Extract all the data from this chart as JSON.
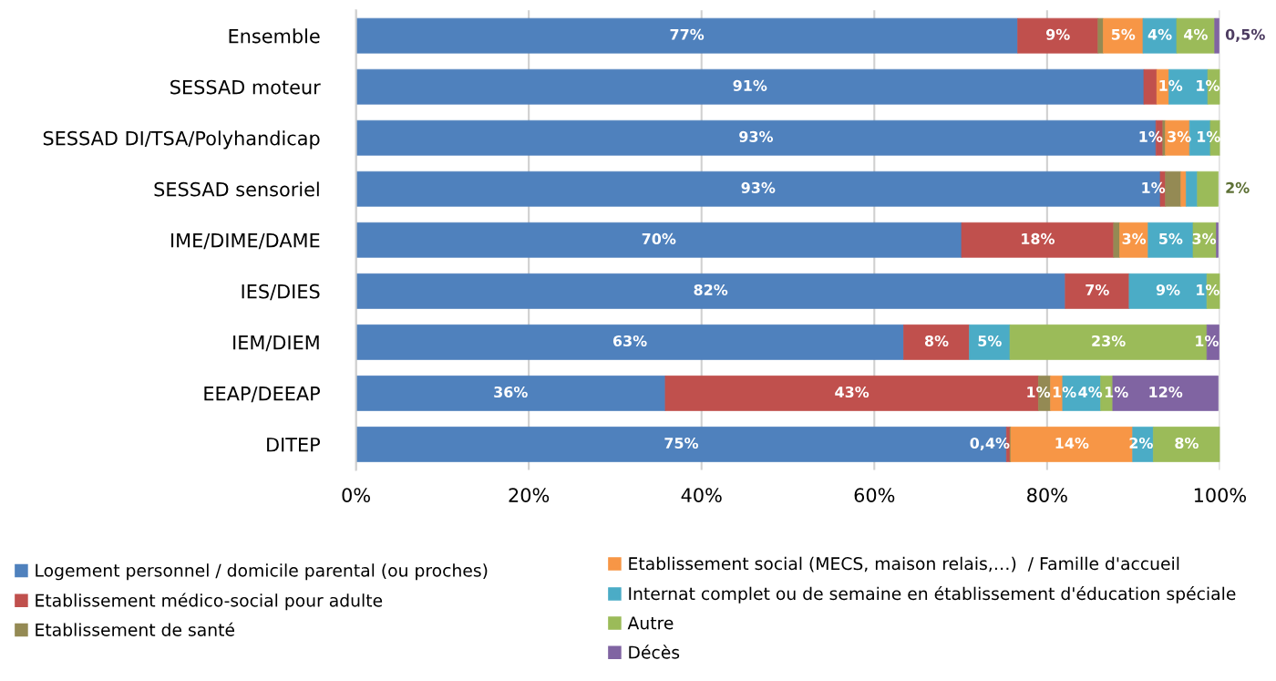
{
  "chart_data": {
    "type": "bar",
    "orientation": "horizontal",
    "stacked": true,
    "categories": [
      "Ensemble",
      "SESSAD moteur",
      "SESSAD DI/TSA/Polyhandicap",
      "SESSAD sensoriel",
      "IME/DIME/DAME",
      "IES/DIES",
      "IEM/DIEM",
      "EEAP/DEEAP",
      "DITEP"
    ],
    "series": [
      {
        "name": "Logement personnel / domicile parental (ou proches)",
        "color": "#4f81bd",
        "values": [
          76.6,
          91.2,
          92.6,
          93.1,
          70.1,
          82.1,
          63.4,
          35.8,
          75.3
        ],
        "value_labels": [
          "77%",
          "91%",
          "93%",
          "93%",
          "70%",
          "82%",
          "63%",
          "36%",
          "75%"
        ]
      },
      {
        "name": "Etablissement médico-social pour adulte",
        "color": "#c0504d",
        "values": [
          9.3,
          1.5,
          0.8,
          0.6,
          17.6,
          7.4,
          7.6,
          43.2,
          0.4
        ],
        "value_labels": [
          "9%",
          null,
          "1%",
          "1%",
          "18%",
          "7%",
          "8%",
          "43%",
          "0,4%"
        ]
      },
      {
        "name": "Etablissement de santé",
        "color": "#948a54",
        "values": [
          0.6,
          null,
          0.3,
          1.8,
          0.7,
          null,
          null,
          1.4,
          0.1
        ],
        "value_labels": [
          null,
          null,
          null,
          null,
          null,
          null,
          null,
          "1%",
          null
        ]
      },
      {
        "name": "Etablissement social (MECS, maison relais,…)  / Famille d'accueil",
        "color": "#f79646",
        "values": [
          4.6,
          1.4,
          2.8,
          0.6,
          3.3,
          null,
          null,
          1.4,
          14.1
        ],
        "value_labels": [
          "5%",
          "1%",
          "3%",
          null,
          "3%",
          null,
          null,
          "1%",
          "14%"
        ]
      },
      {
        "name": "Internat complet ou de semaine en établissement d'éducation spéciale",
        "color": "#4bacc6",
        "values": [
          3.9,
          4.5,
          2.4,
          1.3,
          5.2,
          9.0,
          4.7,
          4.4,
          2.4
        ],
        "value_labels": [
          "4%",
          null,
          null,
          null,
          "5%",
          "9%",
          "5%",
          "4%",
          "2%"
        ]
      },
      {
        "name": "Autre",
        "color": "#9bbb59",
        "values": [
          4.4,
          1.4,
          1.2,
          2.4,
          2.7,
          1.5,
          22.8,
          1.4,
          7.7
        ],
        "value_labels": [
          "4%",
          "1%",
          "1%",
          "2%",
          "3%",
          "1%",
          "23%",
          "1%",
          "8%"
        ]
      },
      {
        "name": "Décès",
        "color": "#8064a2",
        "values": [
          0.5,
          null,
          null,
          null,
          0.2,
          null,
          1.4,
          12.2,
          null
        ],
        "value_labels": [
          "0,5%",
          null,
          null,
          null,
          null,
          null,
          "1%",
          "12%",
          null
        ]
      }
    ],
    "xlim": [
      0,
      100
    ],
    "xticks": [
      {
        "value": 0,
        "label": "0%"
      },
      {
        "value": 20,
        "label": "20%"
      },
      {
        "value": 40,
        "label": "40%"
      },
      {
        "value": 60,
        "label": "60%"
      },
      {
        "value": 80,
        "label": "80%"
      },
      {
        "value": 100,
        "label": "100%"
      }
    ],
    "grid": "x",
    "legend": "bottom"
  }
}
